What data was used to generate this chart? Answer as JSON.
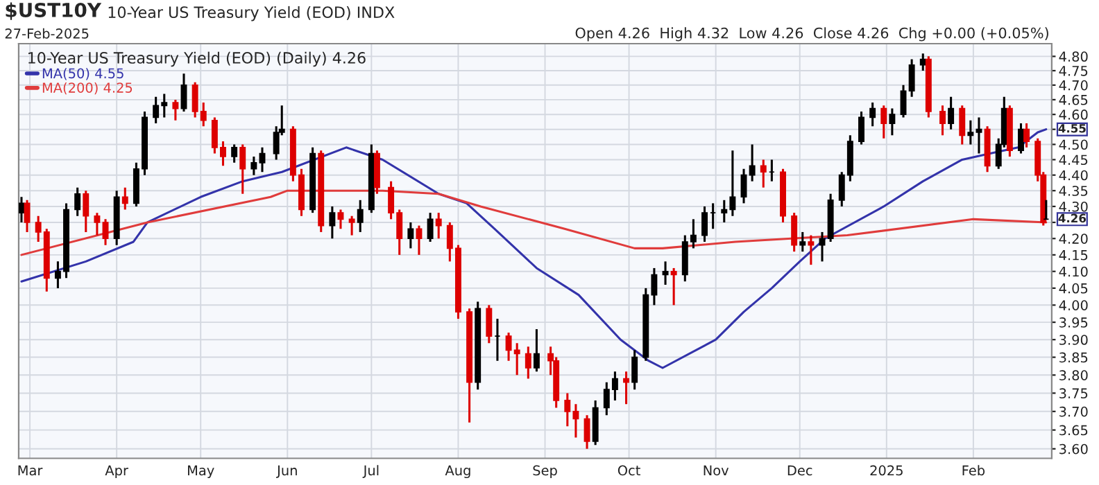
{
  "chart_data": {
    "type": "candlestick",
    "title": "$UST10Y",
    "subtitle": "10-Year US Treasury Yield (EOD) INDX",
    "legend_title": "10-Year US Treasury Yield (EOD) (Daily) 4.26",
    "annotations": [
      "27-Feb-2025",
      "Open 4.26  High 4.32  Low 4.26  Close 4.26  Chg +0.00 (+0.05%)",
      {
        "text": "4.55",
        "x": "2025-02-27",
        "y": 4.55
      },
      {
        "text": "4.26",
        "x": "2025-02-27",
        "y": 4.26
      }
    ],
    "x": [
      "2024-02-27",
      "2024-02-29",
      "2024-03-04",
      "2024-03-07",
      "2024-03-11",
      "2024-03-14",
      "2024-03-18",
      "2024-03-21",
      "2024-03-25",
      "2024-03-28",
      "2024-04-01",
      "2024-04-04",
      "2024-04-08",
      "2024-04-11",
      "2024-04-15",
      "2024-04-18",
      "2024-04-22",
      "2024-04-25",
      "2024-04-29",
      "2024-05-02",
      "2024-05-06",
      "2024-05-09",
      "2024-05-13",
      "2024-05-16",
      "2024-05-20",
      "2024-05-23",
      "2024-05-28",
      "2024-05-30",
      "2024-06-03",
      "2024-06-06",
      "2024-06-10",
      "2024-06-13",
      "2024-06-17",
      "2024-06-20",
      "2024-06-24",
      "2024-06-27",
      "2024-07-01",
      "2024-07-03",
      "2024-07-08",
      "2024-07-11",
      "2024-07-15",
      "2024-07-18",
      "2024-07-22",
      "2024-07-25",
      "2024-07-29",
      "2024-08-01",
      "2024-08-05",
      "2024-08-08",
      "2024-08-12",
      "2024-08-15",
      "2024-08-19",
      "2024-08-22",
      "2024-08-26",
      "2024-08-29",
      "2024-09-03",
      "2024-09-05",
      "2024-09-09",
      "2024-09-12",
      "2024-09-16",
      "2024-09-19",
      "2024-09-23",
      "2024-09-26",
      "2024-09-30",
      "2024-10-03",
      "2024-10-07",
      "2024-10-10",
      "2024-10-14",
      "2024-10-17",
      "2024-10-21",
      "2024-10-24",
      "2024-10-28",
      "2024-10-31",
      "2024-11-04",
      "2024-11-07",
      "2024-11-11",
      "2024-11-14",
      "2024-11-18",
      "2024-11-21",
      "2024-11-25",
      "2024-11-29",
      "2024-12-02",
      "2024-12-05",
      "2024-12-09",
      "2024-12-12",
      "2024-12-16",
      "2024-12-19",
      "2024-12-23",
      "2024-12-27",
      "2024-12-31",
      "2025-01-03",
      "2025-01-07",
      "2025-01-10",
      "2025-01-14",
      "2025-01-16",
      "2025-01-21",
      "2025-01-24",
      "2025-01-28",
      "2025-01-31",
      "2025-02-03",
      "2025-02-06",
      "2025-02-10",
      "2025-02-12",
      "2025-02-14",
      "2025-02-18",
      "2025-02-20",
      "2025-02-24",
      "2025-02-26",
      "2025-02-27"
    ],
    "ohlc": [
      [
        4.28,
        4.33,
        4.25,
        4.31
      ],
      [
        4.31,
        4.32,
        4.22,
        4.25
      ],
      [
        4.25,
        4.27,
        4.19,
        4.22
      ],
      [
        4.22,
        4.23,
        4.04,
        4.08
      ],
      [
        4.08,
        4.13,
        4.05,
        4.1
      ],
      [
        4.1,
        4.31,
        4.08,
        4.29
      ],
      [
        4.29,
        4.36,
        4.27,
        4.34
      ],
      [
        4.34,
        4.35,
        4.22,
        4.27
      ],
      [
        4.27,
        4.28,
        4.21,
        4.25
      ],
      [
        4.25,
        4.26,
        4.18,
        4.2
      ],
      [
        4.2,
        4.35,
        4.18,
        4.33
      ],
      [
        4.33,
        4.36,
        4.29,
        4.31
      ],
      [
        4.31,
        4.44,
        4.3,
        4.42
      ],
      [
        4.42,
        4.61,
        4.4,
        4.59
      ],
      [
        4.59,
        4.66,
        4.57,
        4.63
      ],
      [
        4.63,
        4.67,
        4.59,
        4.64
      ],
      [
        4.64,
        4.65,
        4.58,
        4.62
      ],
      [
        4.62,
        4.74,
        4.61,
        4.7
      ],
      [
        4.7,
        4.71,
        4.59,
        4.61
      ],
      [
        4.61,
        4.64,
        4.56,
        4.58
      ],
      [
        4.58,
        4.59,
        4.47,
        4.49
      ],
      [
        4.49,
        4.51,
        4.43,
        4.46
      ],
      [
        4.46,
        4.5,
        4.44,
        4.49
      ],
      [
        4.49,
        4.5,
        4.34,
        4.42
      ],
      [
        4.42,
        4.46,
        4.4,
        4.44
      ],
      [
        4.44,
        4.49,
        4.41,
        4.47
      ],
      [
        4.47,
        4.56,
        4.45,
        4.54
      ],
      [
        4.54,
        4.63,
        4.53,
        4.55
      ],
      [
        4.55,
        4.56,
        4.38,
        4.4
      ],
      [
        4.4,
        4.42,
        4.27,
        4.29
      ],
      [
        4.29,
        4.49,
        4.28,
        4.47
      ],
      [
        4.47,
        4.48,
        4.22,
        4.24
      ],
      [
        4.24,
        4.3,
        4.2,
        4.28
      ],
      [
        4.28,
        4.29,
        4.23,
        4.26
      ],
      [
        4.26,
        4.27,
        4.21,
        4.25
      ],
      [
        4.25,
        4.32,
        4.22,
        4.29
      ],
      [
        4.29,
        4.5,
        4.28,
        4.47
      ],
      [
        4.47,
        4.48,
        4.34,
        4.36
      ],
      [
        4.36,
        4.38,
        4.26,
        4.28
      ],
      [
        4.28,
        4.29,
        4.15,
        4.2
      ],
      [
        4.2,
        4.25,
        4.17,
        4.23
      ],
      [
        4.23,
        4.24,
        4.15,
        4.2
      ],
      [
        4.2,
        4.28,
        4.19,
        4.26
      ],
      [
        4.26,
        4.28,
        4.2,
        4.24
      ],
      [
        4.24,
        4.25,
        4.13,
        4.17
      ],
      [
        4.17,
        4.18,
        3.96,
        3.98
      ],
      [
        3.98,
        3.99,
        3.67,
        3.78
      ],
      [
        3.78,
        4.01,
        3.76,
        3.99
      ],
      [
        3.99,
        4.0,
        3.89,
        3.91
      ],
      [
        3.91,
        3.96,
        3.84,
        3.91
      ],
      [
        3.91,
        3.92,
        3.84,
        3.87
      ],
      [
        3.87,
        3.89,
        3.8,
        3.86
      ],
      [
        3.86,
        3.88,
        3.79,
        3.82
      ],
      [
        3.82,
        3.93,
        3.81,
        3.86
      ],
      [
        3.86,
        3.88,
        3.8,
        3.84
      ],
      [
        3.84,
        3.85,
        3.71,
        3.73
      ],
      [
        3.73,
        3.75,
        3.66,
        3.7
      ],
      [
        3.7,
        3.72,
        3.63,
        3.68
      ],
      [
        3.68,
        3.69,
        3.6,
        3.62
      ],
      [
        3.62,
        3.73,
        3.61,
        3.71
      ],
      [
        3.71,
        3.78,
        3.69,
        3.76
      ],
      [
        3.76,
        3.81,
        3.73,
        3.79
      ],
      [
        3.79,
        3.81,
        3.72,
        3.78
      ],
      [
        3.78,
        3.87,
        3.76,
        3.85
      ],
      [
        3.85,
        4.05,
        3.84,
        4.03
      ],
      [
        4.03,
        4.11,
        4.0,
        4.09
      ],
      [
        4.09,
        4.13,
        4.06,
        4.1
      ],
      [
        4.1,
        4.11,
        4.0,
        4.09
      ],
      [
        4.09,
        4.21,
        4.07,
        4.19
      ],
      [
        4.19,
        4.26,
        4.17,
        4.21
      ],
      [
        4.21,
        4.3,
        4.19,
        4.28
      ],
      [
        4.28,
        4.31,
        4.23,
        4.28
      ],
      [
        4.28,
        4.32,
        4.25,
        4.29
      ],
      [
        4.29,
        4.48,
        4.27,
        4.33
      ],
      [
        4.33,
        4.42,
        4.31,
        4.4
      ],
      [
        4.4,
        4.5,
        4.38,
        4.43
      ],
      [
        4.43,
        4.45,
        4.36,
        4.41
      ],
      [
        4.41,
        4.45,
        4.38,
        4.41
      ],
      [
        4.41,
        4.42,
        4.25,
        4.27
      ],
      [
        4.27,
        4.28,
        4.16,
        4.18
      ],
      [
        4.18,
        4.22,
        4.16,
        4.19
      ],
      [
        4.19,
        4.21,
        4.12,
        4.18
      ],
      [
        4.18,
        4.22,
        4.13,
        4.2
      ],
      [
        4.2,
        4.34,
        4.19,
        4.32
      ],
      [
        4.32,
        4.41,
        4.3,
        4.4
      ],
      [
        4.4,
        4.53,
        4.38,
        4.51
      ],
      [
        4.51,
        4.61,
        4.5,
        4.59
      ],
      [
        4.59,
        4.64,
        4.56,
        4.62
      ],
      [
        4.62,
        4.63,
        4.52,
        4.57
      ],
      [
        4.57,
        4.62,
        4.53,
        4.6
      ],
      [
        4.6,
        4.7,
        4.59,
        4.68
      ],
      [
        4.68,
        4.79,
        4.66,
        4.77
      ],
      [
        4.77,
        4.81,
        4.75,
        4.79
      ],
      [
        4.79,
        4.8,
        4.59,
        4.61
      ],
      [
        4.61,
        4.63,
        4.53,
        4.57
      ],
      [
        4.57,
        4.66,
        4.55,
        4.62
      ],
      [
        4.62,
        4.63,
        4.5,
        4.53
      ],
      [
        4.53,
        4.58,
        4.5,
        4.54
      ],
      [
        4.54,
        4.59,
        4.47,
        4.55
      ],
      [
        4.55,
        4.56,
        4.41,
        4.43
      ],
      [
        4.43,
        4.52,
        4.42,
        4.5
      ],
      [
        4.5,
        4.66,
        4.49,
        4.62
      ],
      [
        4.62,
        4.63,
        4.46,
        4.48
      ],
      [
        4.48,
        4.57,
        4.47,
        4.55
      ],
      [
        4.55,
        4.57,
        4.49,
        4.51
      ],
      [
        4.51,
        4.52,
        4.38,
        4.4
      ],
      [
        4.4,
        4.41,
        4.24,
        4.25
      ],
      [
        4.26,
        4.32,
        4.26,
        4.26
      ]
    ],
    "colors": [
      "#000000",
      "#dd0000",
      "#dd0000",
      "#dd0000",
      "#000000",
      "#000000",
      "#000000",
      "#dd0000",
      "#dd0000",
      "#dd0000",
      "#000000",
      "#dd0000",
      "#000000",
      "#000000",
      "#000000",
      "#000000",
      "#dd0000",
      "#000000",
      "#dd0000",
      "#dd0000",
      "#dd0000",
      "#dd0000",
      "#000000",
      "#dd0000",
      "#000000",
      "#000000",
      "#000000",
      "#000000",
      "#dd0000",
      "#dd0000",
      "#000000",
      "#dd0000",
      "#000000",
      "#dd0000",
      "#dd0000",
      "#000000",
      "#000000",
      "#dd0000",
      "#dd0000",
      "#dd0000",
      "#000000",
      "#dd0000",
      "#000000",
      "#dd0000",
      "#dd0000",
      "#dd0000",
      "#dd0000",
      "#000000",
      "#dd0000",
      "#000000",
      "#dd0000",
      "#dd0000",
      "#dd0000",
      "#000000",
      "#dd0000",
      "#dd0000",
      "#dd0000",
      "#dd0000",
      "#dd0000",
      "#000000",
      "#000000",
      "#000000",
      "#dd0000",
      "#000000",
      "#000000",
      "#000000",
      "#000000",
      "#dd0000",
      "#000000",
      "#000000",
      "#000000",
      "#000000",
      "#000000",
      "#000000",
      "#000000",
      "#000000",
      "#dd0000",
      "#000000",
      "#dd0000",
      "#dd0000",
      "#000000",
      "#dd0000",
      "#000000",
      "#000000",
      "#000000",
      "#000000",
      "#000000",
      "#000000",
      "#dd0000",
      "#000000",
      "#000000",
      "#000000",
      "#000000",
      "#dd0000",
      "#dd0000",
      "#000000",
      "#dd0000",
      "#000000",
      "#000000",
      "#dd0000",
      "#000000",
      "#000000",
      "#dd0000",
      "#000000",
      "#dd0000",
      "#dd0000",
      "#dd0000",
      "#000000"
    ],
    "series": [
      {
        "name": "MA(50) 4.55",
        "type": "line",
        "color": "#3333aa",
        "x": [
          "2024-02-27",
          "2024-03-21",
          "2024-04-07",
          "2024-04-12",
          "2024-05-01",
          "2024-05-16",
          "2024-05-30",
          "2024-06-22",
          "2024-07-05",
          "2024-07-25",
          "2024-08-04",
          "2024-08-14",
          "2024-08-29",
          "2024-09-13",
          "2024-09-28",
          "2024-10-08",
          "2024-10-13",
          "2024-11-01",
          "2024-11-11",
          "2024-11-21",
          "2024-12-01",
          "2024-12-10",
          "2024-12-31",
          "2025-01-14",
          "2025-01-28",
          "2025-02-07",
          "2025-02-17",
          "2025-02-24",
          "2025-02-27"
        ],
        "values": [
          4.07,
          4.13,
          4.19,
          4.25,
          4.33,
          4.38,
          4.41,
          4.49,
          4.45,
          4.34,
          4.31,
          4.23,
          4.11,
          4.03,
          3.9,
          3.84,
          3.82,
          3.9,
          3.98,
          4.05,
          4.13,
          4.2,
          4.3,
          4.38,
          4.45,
          4.47,
          4.49,
          4.54,
          4.55
        ]
      },
      {
        "name": "MA(200) 4.25",
        "type": "line",
        "color": "#e03c3c",
        "x": [
          "2024-02-27",
          "2024-04-12",
          "2024-05-26",
          "2024-06-01",
          "2024-07-05",
          "2024-07-25",
          "2024-08-09",
          "2024-09-08",
          "2024-10-03",
          "2024-10-13",
          "2024-11-08",
          "2024-12-18",
          "2025-02-01",
          "2025-02-27"
        ],
        "values": [
          4.15,
          4.25,
          4.33,
          4.35,
          4.35,
          4.34,
          4.3,
          4.23,
          4.17,
          4.17,
          4.19,
          4.21,
          4.26,
          4.25
        ]
      }
    ],
    "log": true,
    "xlim": [
      "2024-02-26",
      "2025-03-01"
    ],
    "xticks": [
      {
        "value": "2024-03-01",
        "label": "Mar"
      },
      {
        "value": "2024-04-01",
        "label": "Apr"
      },
      {
        "value": "2024-05-01",
        "label": "May"
      },
      {
        "value": "2024-06-01",
        "label": "Jun"
      },
      {
        "value": "2024-07-01",
        "label": "Jul"
      },
      {
        "value": "2024-08-01",
        "label": "Aug"
      },
      {
        "value": "2024-09-01",
        "label": "Sep"
      },
      {
        "value": "2024-10-01",
        "label": "Oct"
      },
      {
        "value": "2024-11-01",
        "label": "Nov"
      },
      {
        "value": "2024-12-01",
        "label": "Dec"
      },
      {
        "value": "2025-01-01",
        "label": "2025"
      },
      {
        "value": "2025-02-01",
        "label": "Feb"
      }
    ],
    "ylim": [
      3.575,
      4.845
    ],
    "yticks": [
      {
        "value": 3.6,
        "label": "3.60"
      },
      {
        "value": 3.65,
        "label": "3.65"
      },
      {
        "value": 3.7,
        "label": "3.70"
      },
      {
        "value": 3.75,
        "label": "3.75"
      },
      {
        "value": 3.8,
        "label": "3.80"
      },
      {
        "value": 3.85,
        "label": "3.85"
      },
      {
        "value": 3.9,
        "label": "3.90"
      },
      {
        "value": 3.95,
        "label": "3.95"
      },
      {
        "value": 4.0,
        "label": "4.00"
      },
      {
        "value": 4.05,
        "label": "4.05"
      },
      {
        "value": 4.1,
        "label": "4.10"
      },
      {
        "value": 4.15,
        "label": "4.15"
      },
      {
        "value": 4.2,
        "label": "4.20"
      },
      {
        "value": 4.25,
        "label": null
      },
      {
        "value": 4.3,
        "label": "4.30"
      },
      {
        "value": 4.35,
        "label": "4.35"
      },
      {
        "value": 4.4,
        "label": "4.40"
      },
      {
        "value": 4.45,
        "label": "4.45"
      },
      {
        "value": 4.5,
        "label": "4.50"
      },
      {
        "value": 4.55,
        "label": null
      },
      {
        "value": 4.6,
        "label": "4.60"
      },
      {
        "value": 4.65,
        "label": "4.65"
      },
      {
        "value": 4.7,
        "label": "4.70"
      },
      {
        "value": 4.75,
        "label": "4.75"
      },
      {
        "value": 4.8,
        "label": "4.80"
      }
    ],
    "grid": true,
    "legend": "top left"
  }
}
